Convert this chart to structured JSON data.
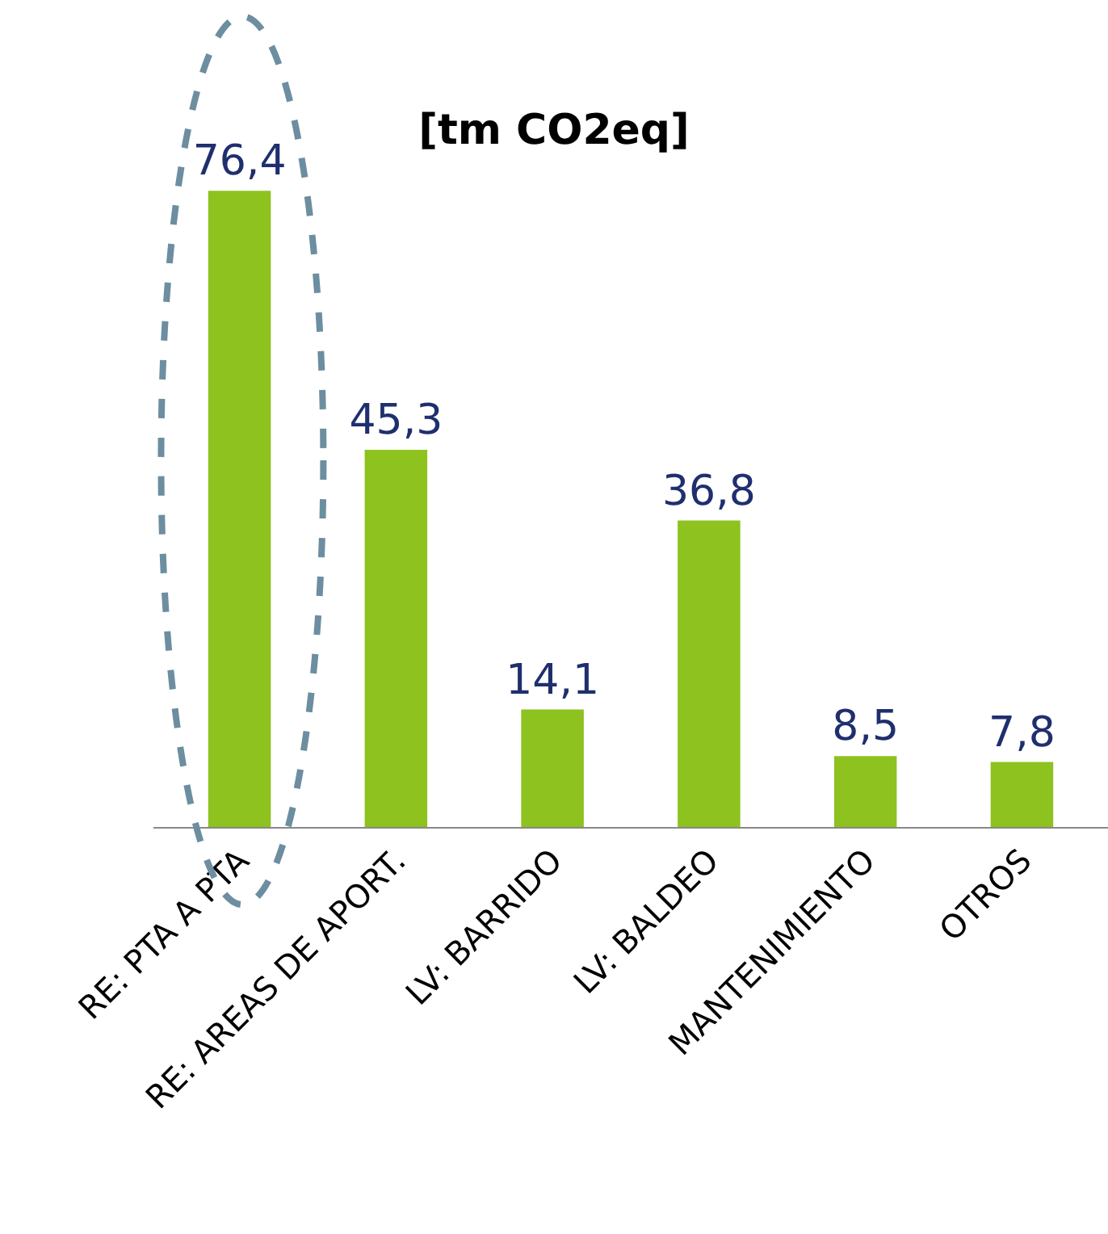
{
  "chart_data": {
    "type": "bar",
    "title": "[tm CO2eq]",
    "categories": [
      "RE: PTA A PTA",
      "RE: AREAS DE APORT.",
      "LV: BARRIDO",
      "LV: BALDEO",
      "MANTENIMIENTO",
      "OTROS"
    ],
    "values": [
      76.4,
      45.3,
      14.1,
      36.8,
      8.5,
      7.8
    ],
    "value_labels": [
      "76,4",
      "45,3",
      "14,1",
      "36,8",
      "8,5",
      "7,8"
    ],
    "color": "#8dc21f"
  }
}
